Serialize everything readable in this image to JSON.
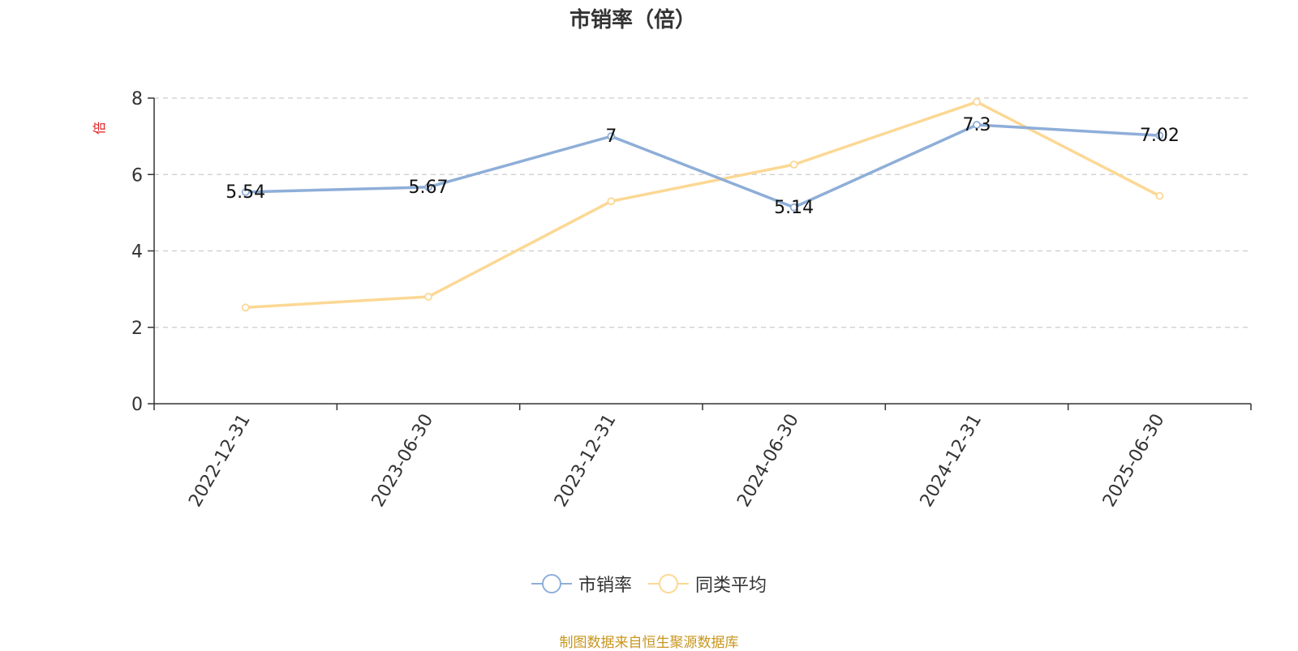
{
  "chart_data": {
    "type": "line",
    "title": "市销率（倍）",
    "ylabel": "倍",
    "categories": [
      "2022-12-31",
      "2023-06-30",
      "2023-12-31",
      "2024-06-30",
      "2024-12-31",
      "2025-06-30"
    ],
    "ylim": [
      0,
      8
    ],
    "yticks": [
      0,
      2,
      4,
      6,
      8
    ],
    "grid": true,
    "legend_position": "bottom-center",
    "series": [
      {
        "name": "市销率",
        "values": [
          5.54,
          5.67,
          7,
          5.14,
          7.3,
          7.02
        ],
        "labels": [
          "5.54",
          "5.67",
          "7",
          "5.14",
          "7.3",
          "7.02"
        ],
        "color": "#8eaed8"
      },
      {
        "name": "同类平均",
        "values": [
          2.52,
          2.8,
          5.3,
          6.26,
          7.9,
          5.44
        ],
        "color": "#fcd894"
      }
    ],
    "source_note": "制图数据来自恒生聚源数据库"
  }
}
